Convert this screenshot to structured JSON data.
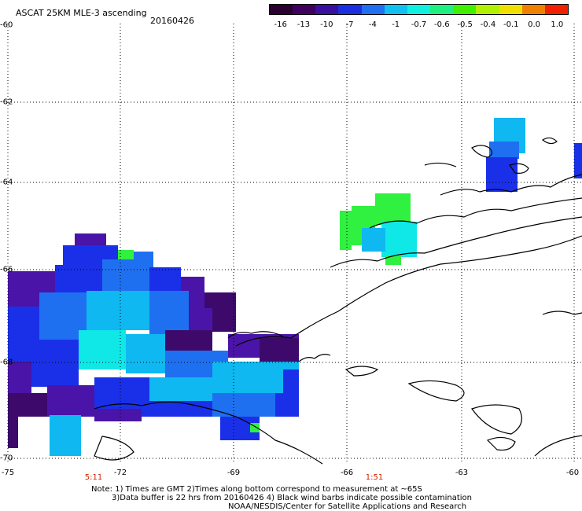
{
  "header": {
    "title": "ASCAT 25KM MLE-3 ascending",
    "date": "20160426"
  },
  "colorbar": {
    "labels": [
      "-16",
      "-13",
      "-10",
      "-7",
      "-4",
      "-1",
      "-0.7",
      "-0.6",
      "-0.5",
      "-0.4",
      "-0.1",
      "0.0",
      "1.0"
    ],
    "colors": [
      "#2a0030",
      "#400060",
      "#3a10a0",
      "#1a30e0",
      "#1f6ff0",
      "#10c0f0",
      "#10f0e0",
      "#20f080",
      "#40f000",
      "#b0f000",
      "#f0e000",
      "#f08000",
      "#f02000"
    ]
  },
  "axes": {
    "longitude_labels": [
      "-75",
      "-72",
      "-69",
      "-66",
      "-63",
      "-60"
    ],
    "latitude_labels": [
      "-60",
      "-62",
      "-64",
      "-66",
      "-68",
      "-70"
    ]
  },
  "time_labels": [
    "5:11",
    "1:51"
  ],
  "notes": [
    "Note: 1) Times are GMT 2)Times along bottom correspond to measurement at ~65S",
    "3)Data buffer is 22 hrs from 20160426 4) Black wind barbs indicate possible contamination",
    "NOAA/NESDIS/Center for Satellite Applications and Research"
  ],
  "colors": {
    "dark_purple": "#3d0a6b",
    "purple": "#4a14a8",
    "blue": "#1a30e8",
    "mid_blue": "#1f70f0",
    "light_blue": "#0fb8f0",
    "cyan": "#10e8e8",
    "green": "#30f040",
    "dark": "#2a0a2a"
  }
}
